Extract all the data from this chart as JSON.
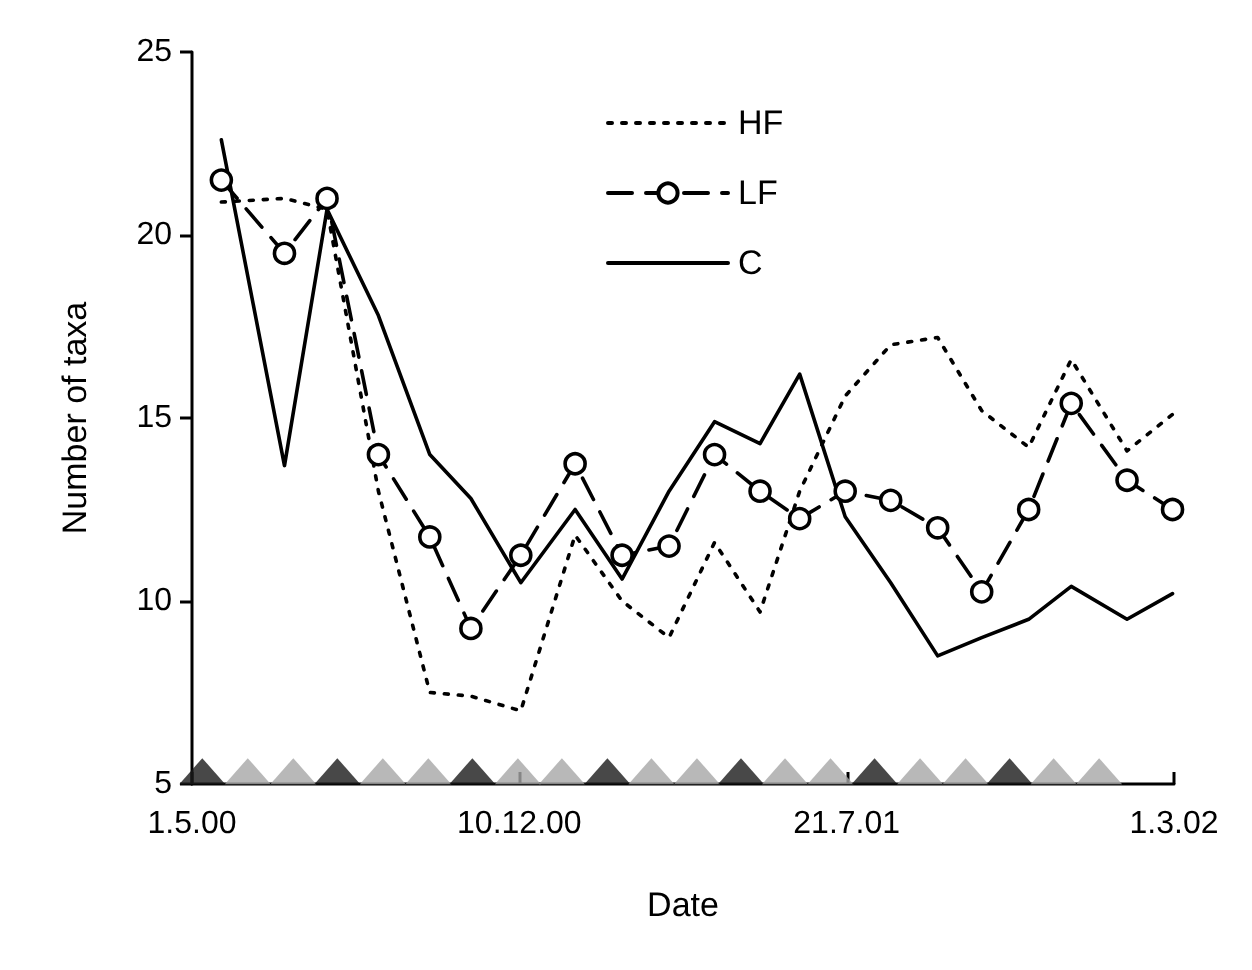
{
  "chart_data": {
    "type": "line",
    "xlabel": "Date",
    "ylabel": "Number of taxa",
    "x": [
      "2000-05-21",
      "2000-07-03",
      "2000-08-01",
      "2000-09-05",
      "2000-10-10",
      "2000-11-07",
      "2000-12-11",
      "2001-01-17",
      "2001-02-18",
      "2001-03-22",
      "2001-04-22",
      "2001-05-23",
      "2001-06-19",
      "2001-07-20",
      "2001-08-20",
      "2001-09-21",
      "2001-10-21",
      "2001-11-22",
      "2001-12-21",
      "2002-01-28",
      "2002-02-28"
    ],
    "xlim": [
      "2000-05-01",
      "2002-03-01"
    ],
    "xticks": [
      {
        "value": "2000-05-01",
        "label": "1.5.00"
      },
      {
        "value": "2000-12-10",
        "label": "10.12.00"
      },
      {
        "value": "2001-07-21",
        "label": "21.7.01"
      },
      {
        "value": "2002-03-01",
        "label": "1.3.02"
      }
    ],
    "ylim": [
      5,
      25
    ],
    "yticks": [
      5,
      10,
      15,
      20,
      25
    ],
    "grid": false,
    "legend": "top",
    "series": [
      {
        "name": "HF",
        "color": "#000000",
        "line_style": "dotted",
        "marker": "none",
        "values": [
          20.9,
          21.0,
          20.7,
          13.0,
          7.5,
          7.4,
          7.0,
          11.8,
          10.0,
          9.0,
          11.6,
          9.7,
          13.0,
          15.6,
          17.0,
          17.2,
          15.2,
          14.2,
          16.6,
          14.1,
          15.1
        ]
      },
      {
        "name": "LF",
        "color": "#000000",
        "line_style": "dashed",
        "marker": "circle",
        "values": [
          21.5,
          19.5,
          21.0,
          14.0,
          11.75,
          9.25,
          11.25,
          13.75,
          11.25,
          11.5,
          14.0,
          13.0,
          12.25,
          13.0,
          12.75,
          12.0,
          10.25,
          12.5,
          15.4,
          13.3,
          12.5
        ]
      },
      {
        "name": "C",
        "color": "#000000",
        "line_style": "solid",
        "marker": "none",
        "values": [
          22.6,
          13.7,
          20.7,
          17.8,
          14.0,
          12.8,
          10.5,
          12.5,
          10.6,
          13.0,
          14.9,
          14.3,
          16.2,
          12.3,
          10.5,
          8.5,
          9.0,
          9.5,
          10.4,
          9.5,
          10.2
        ]
      },
      {
        "type": "scatter",
        "marker": "triangle",
        "x": [
          "2000-05-08",
          "2000-06-08",
          "2000-07-09",
          "2000-08-08",
          "2000-09-08",
          "2000-10-09",
          "2000-11-08",
          "2000-12-09",
          "2001-01-08",
          "2001-02-08",
          "2001-03-10",
          "2001-04-10",
          "2001-05-10",
          "2001-06-09",
          "2001-07-10",
          "2001-08-09",
          "2001-09-09",
          "2001-10-10",
          "2001-11-09",
          "2001-12-09",
          "2002-01-09"
        ],
        "values": [
          5.35,
          5.35,
          5.35,
          5.35,
          5.35,
          5.35,
          5.35,
          5.35,
          5.35,
          5.35,
          5.35,
          5.35,
          5.35,
          5.35,
          5.35,
          5.35,
          5.35,
          5.35,
          5.35,
          5.35,
          5.35
        ],
        "colors": [
          "#1a1a1a",
          "#a6a6a6",
          "#a6a6a6",
          "#1a1a1a",
          "#a6a6a6",
          "#a6a6a6",
          "#1a1a1a",
          "#a6a6a6",
          "#a6a6a6",
          "#1a1a1a",
          "#a6a6a6",
          "#a6a6a6",
          "#1a1a1a",
          "#a6a6a6",
          "#a6a6a6",
          "#1a1a1a",
          "#a6a6a6",
          "#a6a6a6",
          "#1a1a1a",
          "#a6a6a6",
          "#a6a6a6"
        ]
      }
    ]
  }
}
